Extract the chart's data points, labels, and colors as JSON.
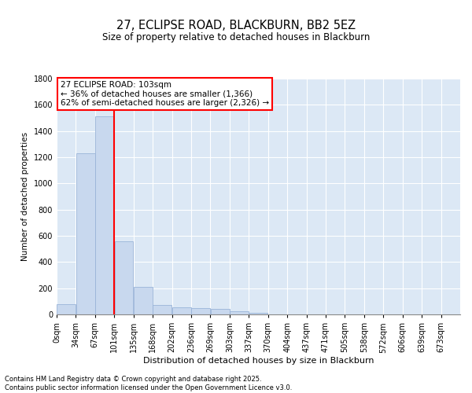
{
  "title1": "27, ECLIPSE ROAD, BLACKBURN, BB2 5EZ",
  "title2": "Size of property relative to detached houses in Blackburn",
  "xlabel": "Distribution of detached houses by size in Blackburn",
  "ylabel": "Number of detached properties",
  "bar_color": "#c8d8ee",
  "bar_edge_color": "#9ab4d8",
  "bg_color": "#dce8f5",
  "annotation_text": "27 ECLIPSE ROAD: 103sqm\n← 36% of detached houses are smaller (1,366)\n62% of semi-detached houses are larger (2,326) →",
  "annotation_box_color": "white",
  "annotation_box_edge": "red",
  "vline_color": "red",
  "categories": [
    "0sqm",
    "34sqm",
    "67sqm",
    "101sqm",
    "135sqm",
    "168sqm",
    "202sqm",
    "236sqm",
    "269sqm",
    "303sqm",
    "337sqm",
    "370sqm",
    "404sqm",
    "437sqm",
    "471sqm",
    "505sqm",
    "538sqm",
    "572sqm",
    "606sqm",
    "639sqm",
    "673sqm"
  ],
  "bin_edges": [
    0,
    33.5,
    67,
    100.5,
    134,
    167.5,
    201,
    234.5,
    268,
    301.5,
    335,
    368.5,
    402,
    435.5,
    469,
    502.5,
    536,
    569.5,
    603,
    636.5,
    670,
    703.5
  ],
  "values": [
    80,
    1230,
    1510,
    560,
    210,
    70,
    55,
    50,
    40,
    25,
    15,
    0,
    0,
    0,
    0,
    0,
    0,
    0,
    0,
    0,
    0
  ],
  "vline_x": 100.5,
  "ylim": [
    0,
    1800
  ],
  "yticks": [
    0,
    200,
    400,
    600,
    800,
    1000,
    1200,
    1400,
    1600,
    1800
  ],
  "footer1": "Contains HM Land Registry data © Crown copyright and database right 2025.",
  "footer2": "Contains public sector information licensed under the Open Government Licence v3.0."
}
